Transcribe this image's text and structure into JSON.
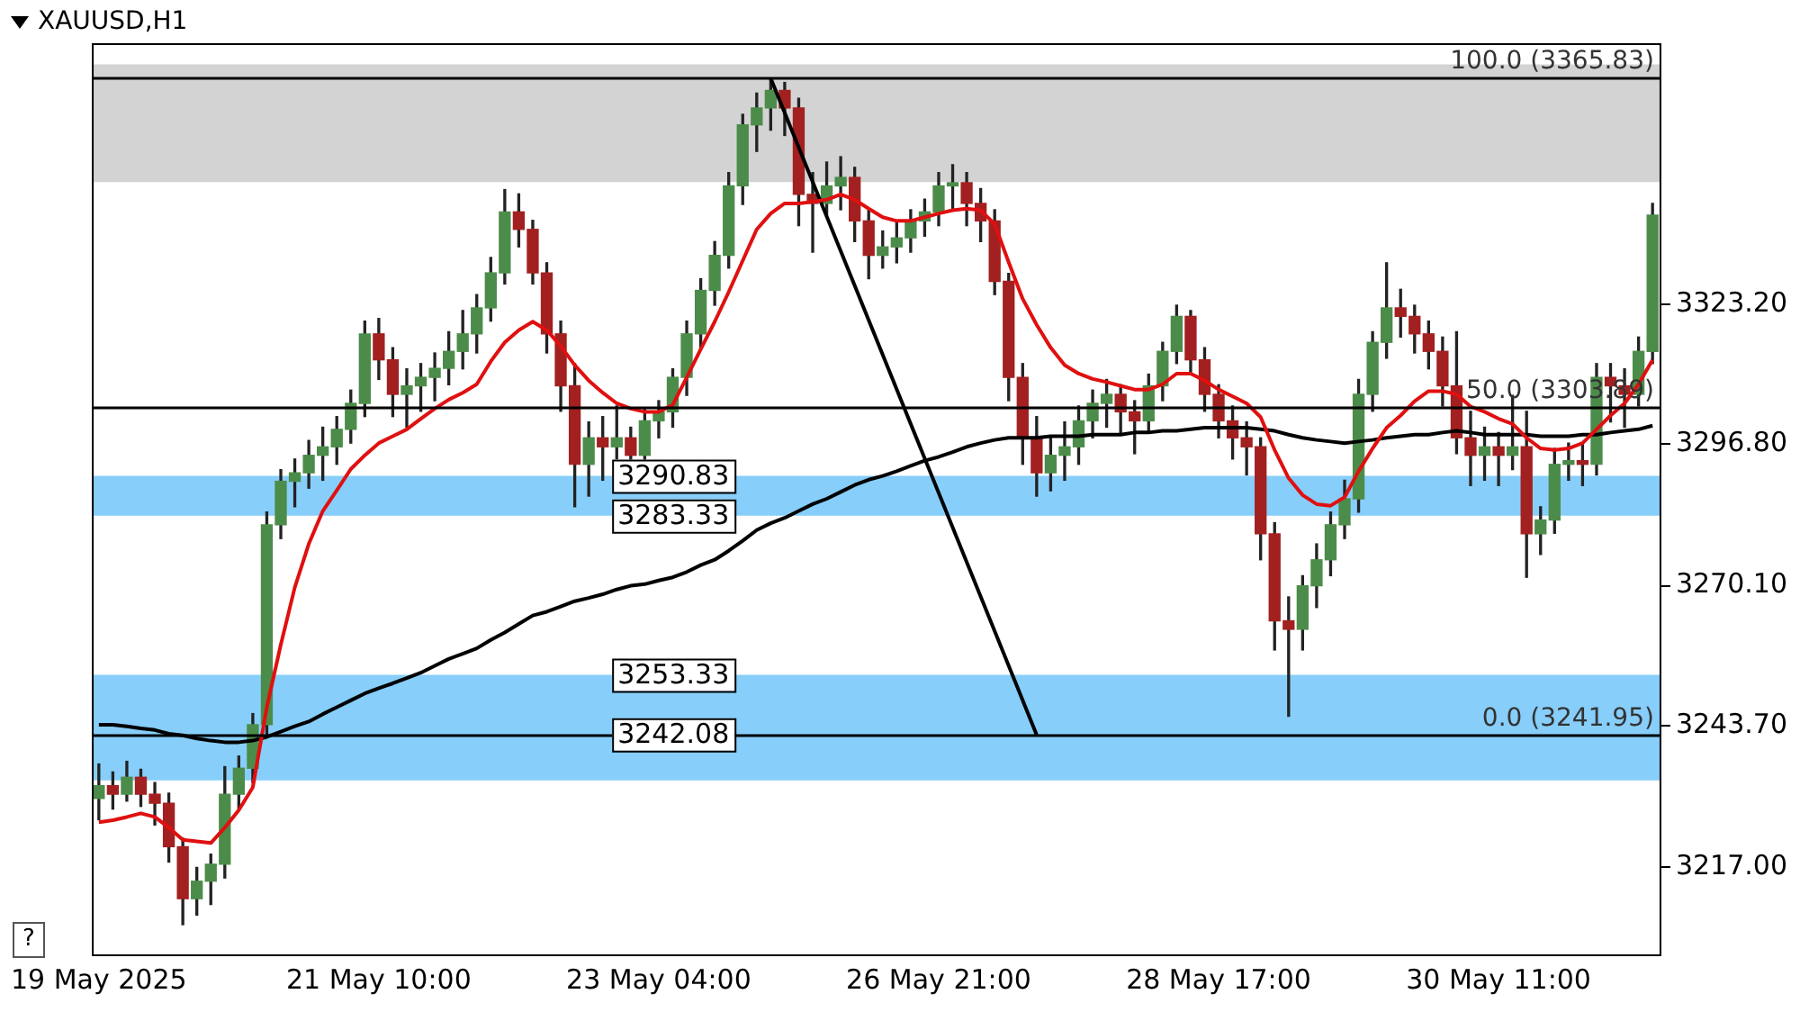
{
  "chart_data": {
    "type": "candlestick",
    "title": "XAUUSD,H1",
    "categories": [
      "19 May 2025",
      null,
      null,
      null,
      null,
      null,
      null,
      null,
      null,
      null,
      null,
      null,
      null,
      null,
      null,
      null,
      null,
      null,
      null,
      null,
      "21 May 10:00",
      null,
      null,
      null,
      null,
      null,
      null,
      null,
      null,
      null,
      null,
      null,
      null,
      null,
      null,
      null,
      null,
      null,
      null,
      null,
      "23 May 04:00",
      null,
      null,
      null,
      null,
      null,
      null,
      null,
      null,
      null,
      null,
      null,
      null,
      null,
      null,
      null,
      null,
      null,
      null,
      null,
      "26 May 21:00",
      null,
      null,
      null,
      null,
      null,
      null,
      null,
      null,
      null,
      null,
      null,
      null,
      null,
      null,
      null,
      null,
      null,
      null,
      null,
      "28 May 17:00",
      null,
      null,
      null,
      null,
      null,
      null,
      null,
      null,
      null,
      null,
      null,
      null,
      null,
      null,
      null,
      null,
      null,
      null,
      null,
      "30 May 11:00",
      null,
      null,
      null,
      null,
      null,
      null,
      null,
      null,
      null,
      null,
      null
    ],
    "ohlc": [
      [
        3230.0,
        3236.5,
        3226.0,
        3232.4
      ],
      [
        3232.4,
        3235.0,
        3228.0,
        3230.8
      ],
      [
        3230.8,
        3237.0,
        3229.5,
        3234.0
      ],
      [
        3234.0,
        3235.5,
        3228.5,
        3230.8
      ],
      [
        3230.8,
        3233.0,
        3225.0,
        3229.1
      ],
      [
        3229.1,
        3231.0,
        3218.0,
        3220.9
      ],
      [
        3220.9,
        3222.5,
        3206.2,
        3211.1
      ],
      [
        3211.1,
        3217.0,
        3208.0,
        3214.4
      ],
      [
        3214.4,
        3219.5,
        3210.0,
        3217.6
      ],
      [
        3217.6,
        3236.0,
        3215.0,
        3230.8
      ],
      [
        3230.8,
        3238.0,
        3228.0,
        3235.7
      ],
      [
        3235.7,
        3246.0,
        3233.0,
        3243.9
      ],
      [
        3243.9,
        3284.0,
        3242.0,
        3281.6
      ],
      [
        3281.6,
        3292.0,
        3279.0,
        3289.8
      ],
      [
        3289.8,
        3294.0,
        3285.0,
        3291.4
      ],
      [
        3291.4,
        3297.5,
        3288.5,
        3294.7
      ],
      [
        3294.7,
        3300.0,
        3290.0,
        3296.3
      ],
      [
        3296.3,
        3302.0,
        3293.0,
        3299.6
      ],
      [
        3299.6,
        3307.0,
        3297.0,
        3304.5
      ],
      [
        3304.5,
        3320.0,
        3302.0,
        3317.6
      ],
      [
        3317.6,
        3320.5,
        3309.0,
        3312.7
      ],
      [
        3312.7,
        3315.0,
        3302.0,
        3306.2
      ],
      [
        3306.2,
        3311.0,
        3300.0,
        3307.8
      ],
      [
        3307.8,
        3312.0,
        3303.0,
        3309.4
      ],
      [
        3309.4,
        3314.0,
        3305.0,
        3311.1
      ],
      [
        3311.1,
        3318.0,
        3308.0,
        3314.3
      ],
      [
        3314.3,
        3322.0,
        3311.0,
        3317.6
      ],
      [
        3317.6,
        3325.0,
        3314.0,
        3322.5
      ],
      [
        3322.5,
        3332.0,
        3320.0,
        3329.1
      ],
      [
        3329.1,
        3344.8,
        3327.0,
        3340.6
      ],
      [
        3340.6,
        3344.0,
        3334.0,
        3337.3
      ],
      [
        3337.3,
        3339.0,
        3327.0,
        3329.1
      ],
      [
        3329.1,
        3331.0,
        3314.0,
        3317.6
      ],
      [
        3317.6,
        3320.0,
        3303.0,
        3307.8
      ],
      [
        3307.8,
        3312.0,
        3285.0,
        3293.0
      ],
      [
        3293.0,
        3301.0,
        3287.0,
        3298.0
      ],
      [
        3298.0,
        3302.0,
        3290.0,
        3296.3
      ],
      [
        3296.3,
        3304.0,
        3294.0,
        3298.0
      ],
      [
        3298.0,
        3300.0,
        3293.5,
        3294.7
      ],
      [
        3294.7,
        3303.5,
        3293.5,
        3301.2
      ],
      [
        3301.2,
        3305.0,
        3298.0,
        3302.9
      ],
      [
        3302.9,
        3311.0,
        3300.0,
        3309.4
      ],
      [
        3309.4,
        3320.0,
        3306.0,
        3317.6
      ],
      [
        3317.6,
        3328.0,
        3315.0,
        3325.8
      ],
      [
        3325.8,
        3335.0,
        3323.0,
        3332.4
      ],
      [
        3332.4,
        3348.0,
        3330.0,
        3345.5
      ],
      [
        3345.5,
        3359.0,
        3342.0,
        3357.0
      ],
      [
        3357.0,
        3363.0,
        3352.0,
        3360.2
      ],
      [
        3360.2,
        3365.8,
        3356.0,
        3363.5
      ],
      [
        3363.5,
        3365.0,
        3355.0,
        3360.2
      ],
      [
        3360.2,
        3362.0,
        3338.0,
        3343.9
      ],
      [
        3343.9,
        3348.0,
        3333.0,
        3342.2
      ],
      [
        3342.2,
        3350.0,
        3340.0,
        3345.5
      ],
      [
        3345.5,
        3351.0,
        3341.0,
        3347.1
      ],
      [
        3347.1,
        3349.0,
        3335.0,
        3338.9
      ],
      [
        3338.9,
        3341.0,
        3328.0,
        3332.4
      ],
      [
        3332.4,
        3337.0,
        3330.0,
        3334.0
      ],
      [
        3334.0,
        3338.5,
        3331.0,
        3335.7
      ],
      [
        3335.7,
        3341.0,
        3333.0,
        3338.9
      ],
      [
        3338.9,
        3343.0,
        3336.0,
        3340.6
      ],
      [
        3340.6,
        3348.0,
        3338.0,
        3345.5
      ],
      [
        3345.5,
        3349.5,
        3341.0,
        3346.1
      ],
      [
        3346.1,
        3348.0,
        3338.0,
        3342.2
      ],
      [
        3342.2,
        3345.0,
        3335.0,
        3338.9
      ],
      [
        3338.9,
        3341.0,
        3325.0,
        3327.5
      ],
      [
        3327.5,
        3329.0,
        3305.0,
        3309.4
      ],
      [
        3309.4,
        3312.0,
        3293.0,
        3298.0
      ],
      [
        3298.0,
        3302.0,
        3287.0,
        3291.4
      ],
      [
        3291.4,
        3298.0,
        3288.0,
        3294.7
      ],
      [
        3294.7,
        3301.0,
        3290.0,
        3296.3
      ],
      [
        3296.3,
        3304.0,
        3293.0,
        3301.2
      ],
      [
        3301.2,
        3307.0,
        3298.0,
        3304.5
      ],
      [
        3304.5,
        3309.0,
        3300.0,
        3306.2
      ],
      [
        3306.2,
        3308.0,
        3299.0,
        3302.9
      ],
      [
        3302.9,
        3305.0,
        3295.0,
        3301.2
      ],
      [
        3301.2,
        3310.0,
        3299.0,
        3307.8
      ],
      [
        3307.8,
        3316.0,
        3305.0,
        3314.3
      ],
      [
        3314.3,
        3323.0,
        3312.0,
        3320.9
      ],
      [
        3320.9,
        3322.0,
        3310.0,
        3312.7
      ],
      [
        3312.7,
        3315.0,
        3303.0,
        3306.2
      ],
      [
        3306.2,
        3308.0,
        3298.0,
        3301.2
      ],
      [
        3301.2,
        3304.0,
        3294.0,
        3298.0
      ],
      [
        3298.0,
        3301.0,
        3291.0,
        3296.3
      ],
      [
        3296.3,
        3298.0,
        3275.0,
        3279.9
      ],
      [
        3279.9,
        3282.0,
        3258.0,
        3263.5
      ],
      [
        3263.5,
        3268.0,
        3245.5,
        3261.9
      ],
      [
        3261.9,
        3272.0,
        3258.0,
        3270.1
      ],
      [
        3270.1,
        3278.0,
        3266.0,
        3275.0
      ],
      [
        3275.0,
        3284.0,
        3272.0,
        3281.6
      ],
      [
        3281.6,
        3290.0,
        3279.0,
        3286.5
      ],
      [
        3286.5,
        3309.0,
        3284.0,
        3306.2
      ],
      [
        3306.2,
        3318.0,
        3303.0,
        3316.0
      ],
      [
        3316.0,
        3331.0,
        3313.0,
        3322.5
      ],
      [
        3322.5,
        3326.0,
        3317.0,
        3320.9
      ],
      [
        3320.9,
        3323.0,
        3314.0,
        3317.6
      ],
      [
        3317.6,
        3320.0,
        3311.0,
        3314.3
      ],
      [
        3314.3,
        3317.0,
        3304.0,
        3307.8
      ],
      [
        3307.8,
        3318.0,
        3295.0,
        3298.0
      ],
      [
        3298.0,
        3303.0,
        3289.0,
        3294.7
      ],
      [
        3294.7,
        3300.0,
        3290.0,
        3296.3
      ],
      [
        3296.3,
        3299.0,
        3289.0,
        3294.7
      ],
      [
        3294.7,
        3306.0,
        3292.0,
        3296.3
      ],
      [
        3296.3,
        3303.0,
        3271.7,
        3279.9
      ],
      [
        3279.9,
        3285.0,
        3276.0,
        3282.5
      ],
      [
        3282.5,
        3296.0,
        3280.0,
        3293.0
      ],
      [
        3293.0,
        3297.0,
        3290.0,
        3293.7
      ],
      [
        3293.7,
        3297.0,
        3289.0,
        3293.0
      ],
      [
        3293.0,
        3312.0,
        3291.0,
        3309.4
      ],
      [
        3309.4,
        3312.0,
        3301.0,
        3307.8
      ],
      [
        3307.8,
        3311.0,
        3300.0,
        3306.2
      ],
      [
        3306.2,
        3317.0,
        3304.0,
        3314.3
      ],
      [
        3314.3,
        3342.2,
        3312.0,
        3340.0
      ]
    ],
    "colors": [
      "#4c8c4a",
      "#a32020",
      "#4c8c4a",
      "#a32020",
      "#a32020",
      "#a32020",
      "#a32020",
      "#4c8c4a",
      "#4c8c4a",
      "#4c8c4a",
      "#4c8c4a",
      "#4c8c4a",
      "#4c8c4a",
      "#4c8c4a",
      "#4c8c4a",
      "#4c8c4a",
      "#4c8c4a",
      "#4c8c4a",
      "#4c8c4a",
      "#4c8c4a",
      "#a32020",
      "#a32020",
      "#4c8c4a",
      "#4c8c4a",
      "#4c8c4a",
      "#4c8c4a",
      "#4c8c4a",
      "#4c8c4a",
      "#4c8c4a",
      "#4c8c4a",
      "#a32020",
      "#a32020",
      "#a32020",
      "#a32020",
      "#a32020",
      "#4c8c4a",
      "#a32020",
      "#4c8c4a",
      "#a32020",
      "#4c8c4a",
      "#4c8c4a",
      "#4c8c4a",
      "#4c8c4a",
      "#4c8c4a",
      "#4c8c4a",
      "#4c8c4a",
      "#4c8c4a",
      "#4c8c4a",
      "#4c8c4a",
      "#a32020",
      "#a32020",
      "#a32020",
      "#4c8c4a",
      "#4c8c4a",
      "#a32020",
      "#a32020",
      "#4c8c4a",
      "#4c8c4a",
      "#4c8c4a",
      "#4c8c4a",
      "#4c8c4a",
      "#4c8c4a",
      "#a32020",
      "#a32020",
      "#a32020",
      "#a32020",
      "#a32020",
      "#a32020",
      "#4c8c4a",
      "#4c8c4a",
      "#4c8c4a",
      "#4c8c4a",
      "#4c8c4a",
      "#a32020",
      "#a32020",
      "#4c8c4a",
      "#4c8c4a",
      "#4c8c4a",
      "#a32020",
      "#a32020",
      "#a32020",
      "#a32020",
      "#a32020",
      "#a32020",
      "#a32020",
      "#a32020",
      "#4c8c4a",
      "#4c8c4a",
      "#4c8c4a",
      "#4c8c4a",
      "#4c8c4a",
      "#4c8c4a",
      "#4c8c4a",
      "#a32020",
      "#a32020",
      "#a32020",
      "#a32020",
      "#a32020",
      "#a32020",
      "#4c8c4a",
      "#a32020",
      "#4c8c4a",
      "#a32020",
      "#4c8c4a",
      "#4c8c4a",
      "#4c8c4a",
      "#a32020",
      "#4c8c4a",
      "#a32020",
      "#a32020",
      "#4c8c4a",
      "#4c8c4a"
    ],
    "series": [
      {
        "type": "line",
        "color": "#e01010",
        "values": [
          3225.5,
          3225.9,
          3226.5,
          3227.2,
          3226.5,
          3224.5,
          3222.2,
          3221.9,
          3221.6,
          3224.5,
          3227.8,
          3232.1,
          3247.2,
          3259.0,
          3269.8,
          3278.0,
          3284.2,
          3288.1,
          3292.1,
          3294.7,
          3297.0,
          3298.3,
          3299.6,
          3301.6,
          3303.5,
          3305.2,
          3306.5,
          3308.1,
          3312.4,
          3316.0,
          3318.3,
          3319.9,
          3318.3,
          3315.3,
          3311.7,
          3308.8,
          3306.5,
          3304.5,
          3303.5,
          3302.9,
          3302.9,
          3304.2,
          3309.4,
          3314.7,
          3319.9,
          3325.5,
          3331.4,
          3337.3,
          3340.3,
          3342.2,
          3342.2,
          3342.5,
          3342.9,
          3343.9,
          3342.9,
          3341.2,
          3339.6,
          3338.9,
          3338.9,
          3339.6,
          3340.3,
          3340.9,
          3341.2,
          3340.9,
          3338.3,
          3331.1,
          3324.2,
          3319.3,
          3315.0,
          3311.7,
          3310.1,
          3309.1,
          3308.5,
          3307.8,
          3307.1,
          3307.1,
          3308.1,
          3310.1,
          3310.1,
          3308.8,
          3307.1,
          3305.8,
          3304.5,
          3301.9,
          3295.7,
          3290.4,
          3287.2,
          3285.5,
          3285.2,
          3286.8,
          3291.7,
          3296.0,
          3299.9,
          3302.2,
          3304.9,
          3306.8,
          3306.8,
          3306.2,
          3303.9,
          3302.9,
          3301.6,
          3300.6,
          3298.0,
          3296.0,
          3295.7,
          3296.0,
          3297.0,
          3299.6,
          3302.2,
          3304.5,
          3308.1,
          3312.7
        ]
      },
      {
        "type": "line",
        "color": "#000000",
        "values": [
          3243.9,
          3243.9,
          3243.6,
          3243.2,
          3242.9,
          3242.2,
          3241.9,
          3241.3,
          3240.9,
          3240.6,
          3240.6,
          3240.9,
          3241.6,
          3242.6,
          3243.6,
          3244.5,
          3245.9,
          3247.2,
          3248.5,
          3249.8,
          3250.8,
          3251.7,
          3252.7,
          3253.7,
          3255.0,
          3256.3,
          3257.3,
          3258.3,
          3259.9,
          3261.3,
          3262.9,
          3264.5,
          3265.2,
          3266.2,
          3267.2,
          3267.8,
          3268.5,
          3269.4,
          3270.1,
          3270.4,
          3271.1,
          3271.7,
          3272.7,
          3274.0,
          3275.0,
          3276.7,
          3278.6,
          3280.6,
          3281.9,
          3282.9,
          3284.2,
          3285.5,
          3286.5,
          3287.8,
          3289.1,
          3290.1,
          3290.8,
          3291.7,
          3292.7,
          3293.7,
          3294.4,
          3295.3,
          3296.3,
          3297.0,
          3297.6,
          3298.0,
          3298.0,
          3298.0,
          3298.3,
          3298.3,
          3298.3,
          3298.6,
          3298.6,
          3298.6,
          3299.0,
          3299.0,
          3299.3,
          3299.3,
          3299.6,
          3299.9,
          3299.9,
          3299.9,
          3299.9,
          3299.6,
          3299.3,
          3298.6,
          3298.0,
          3297.6,
          3297.3,
          3297.0,
          3297.3,
          3297.6,
          3298.0,
          3298.3,
          3298.6,
          3298.6,
          3299.0,
          3299.3,
          3299.0,
          3298.6,
          3298.6,
          3298.6,
          3298.6,
          3298.3,
          3298.3,
          3298.3,
          3298.6,
          3298.6,
          3299.0,
          3299.3,
          3299.6,
          3300.3
        ]
      },
      {
        "type": "line",
        "color": "#000000",
        "values": [
          null,
          null,
          null,
          null,
          null,
          null,
          null,
          null,
          null,
          null,
          null,
          null,
          null,
          null,
          null,
          null,
          null,
          null,
          null,
          null,
          null,
          null,
          null,
          null,
          null,
          null,
          null,
          null,
          null,
          null,
          null,
          null,
          null,
          null,
          null,
          null,
          null,
          null,
          null,
          null,
          null,
          null,
          null,
          null,
          null,
          null,
          null,
          null,
          3365.8,
          null,
          null,
          null,
          null,
          null,
          null,
          null,
          null,
          null,
          null,
          null,
          null,
          null,
          null,
          null,
          null,
          null,
          null,
          3242.0,
          null,
          null,
          null,
          null,
          null,
          null,
          null,
          null,
          null,
          null,
          null,
          null,
          null,
          null,
          null,
          null,
          null,
          null,
          null,
          null,
          null,
          null,
          null,
          null,
          null,
          null,
          null,
          null,
          null,
          null,
          null,
          null,
          null,
          null,
          null,
          null,
          null,
          null,
          null,
          null,
          null,
          null,
          null,
          null
        ]
      }
    ],
    "ylim": [
      3200.6,
      3372.4
    ],
    "yticks": [
      {
        "value": 3217.0,
        "label": "3217.00"
      },
      {
        "value": 3243.7,
        "label": "3243.70"
      },
      {
        "value": 3270.1,
        "label": "3270.10"
      },
      {
        "value": 3296.8,
        "label": "3296.80"
      },
      {
        "value": 3323.2,
        "label": "3323.20"
      }
    ],
    "bands": [
      {
        "axis": "y",
        "from": 3346.2,
        "to": 3368.4,
        "color": "#d3d3d3"
      },
      {
        "axis": "y",
        "from": 3283.33,
        "to": 3290.83,
        "color": "#87cefa"
      },
      {
        "axis": "y",
        "from": 3242.08,
        "to": 3253.33,
        "color": "#87cefa"
      },
      {
        "axis": "y",
        "from": 3233.4,
        "to": 3244.5,
        "color": "#87cefa"
      }
    ],
    "ref_lines": [
      {
        "axis": "y",
        "value": 3365.83,
        "label": "100.0 (3365.83)",
        "color": "#000000"
      },
      {
        "axis": "y",
        "value": 3303.89,
        "label": "50.0 (3303.89)",
        "color": "#000000"
      },
      {
        "axis": "y",
        "value": 3241.95,
        "label": "0.0 (3241.95)",
        "color": "#000000"
      }
    ],
    "annotations": [
      {
        "text": "3290.83",
        "y": 3290.83
      },
      {
        "text": "3283.33",
        "y": 3283.33
      },
      {
        "text": "3253.33",
        "y": 3253.33
      },
      {
        "text": "3242.08",
        "y": 3242.08
      },
      "?"
    ],
    "marker": "none",
    "legend": false,
    "grid": false
  }
}
